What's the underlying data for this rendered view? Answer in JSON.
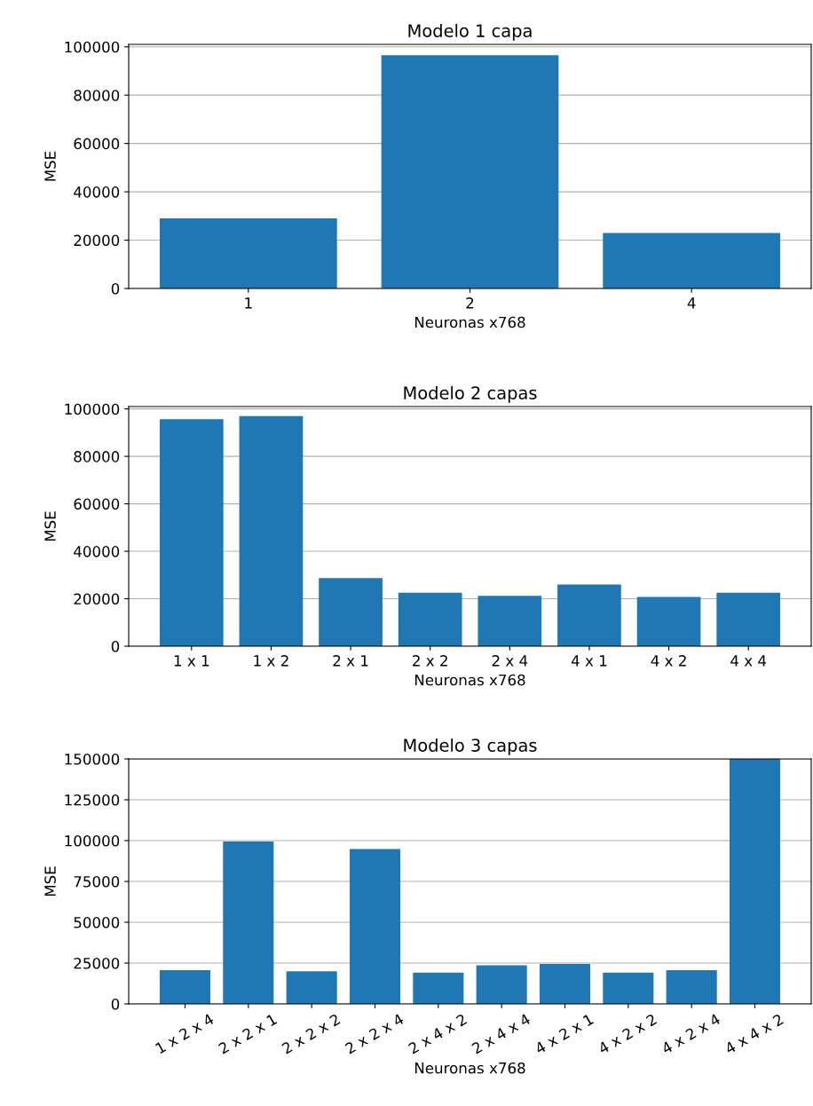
{
  "chart_data": [
    {
      "type": "bar",
      "title": "Modelo 1 capa",
      "xlabel": "Neuronas x768",
      "ylabel": "MSE",
      "categories": [
        "1",
        "2",
        "4"
      ],
      "values": [
        29000,
        96500,
        23000
      ],
      "color": "#1f77b4",
      "ylim": [
        0,
        101000
      ],
      "yticks": [
        0,
        20000,
        40000,
        60000,
        80000,
        100000
      ],
      "grid": "y"
    },
    {
      "type": "bar",
      "title": "Modelo 2 capas",
      "xlabel": "Neuronas x768",
      "ylabel": "MSE",
      "categories": [
        "1 x 1",
        "1 x 2",
        "2 x 1",
        "2 x 2",
        "2 x 4",
        "4 x 1",
        "4 x 2",
        "4 x 4"
      ],
      "values": [
        95700,
        97000,
        28700,
        22500,
        21200,
        26000,
        20800,
        22500
      ],
      "color": "#1f77b4",
      "ylim": [
        0,
        101000
      ],
      "yticks": [
        0,
        20000,
        40000,
        60000,
        80000,
        100000
      ],
      "grid": "y"
    },
    {
      "type": "bar",
      "title": "Modelo 3 capas",
      "xlabel": "Neuronas x768",
      "ylabel": "MSE",
      "categories": [
        "1 x 2 x 4",
        "2 x 2 x 1",
        "2 x 2 x 2",
        "2 x 2 x 4",
        "2 x 4 x 2",
        "2 x 4 x 4",
        "4 x 2 x 1",
        "4 x 2 x 2",
        "4 x 2 x 4",
        "4 x 4 x 2"
      ],
      "values": [
        20700,
        99400,
        20000,
        94900,
        19100,
        23600,
        24500,
        19100,
        20700,
        150000
      ],
      "color": "#1f77b4",
      "ylim": [
        0,
        150000
      ],
      "yticks": [
        0,
        25000,
        50000,
        75000,
        100000,
        125000,
        150000
      ],
      "grid": "y"
    }
  ]
}
